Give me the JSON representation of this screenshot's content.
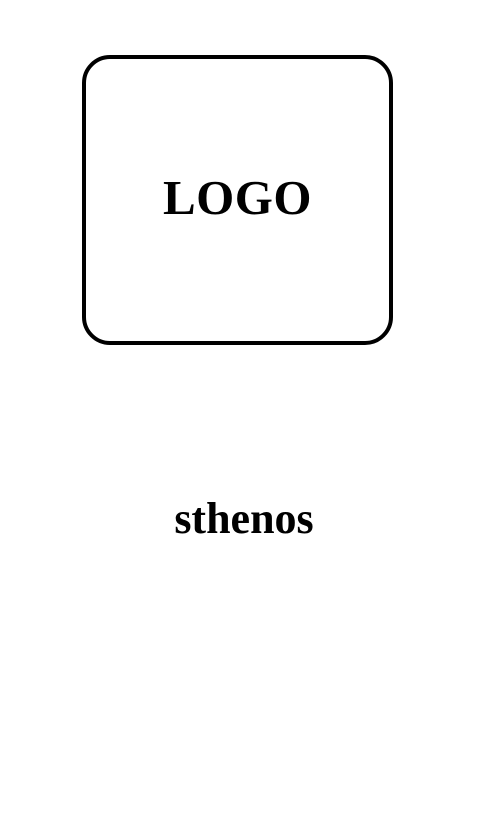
{
  "logo": {
    "placeholder_text": "LOGO"
  },
  "app": {
    "name": "sthenos"
  },
  "colors": {
    "background": "#ffffff",
    "foreground": "#000000"
  }
}
